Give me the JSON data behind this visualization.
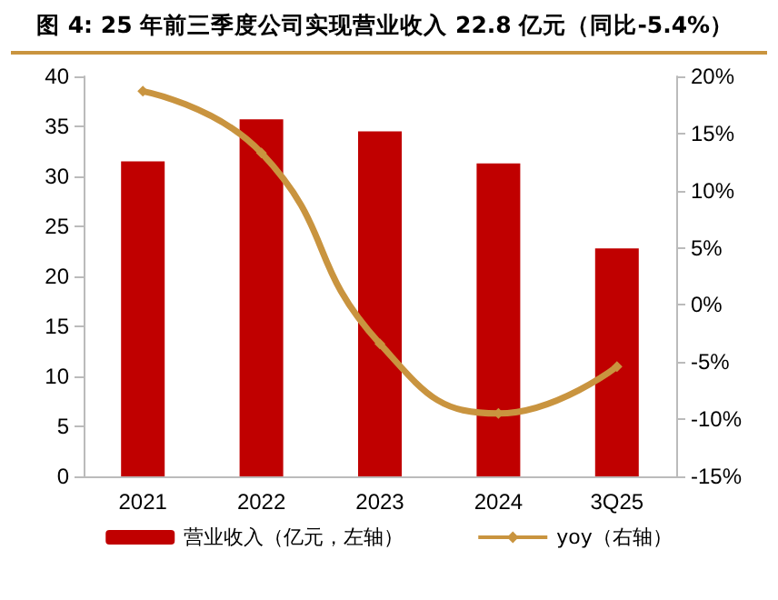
{
  "chart_data": {
    "type": "bar",
    "title": "图 4: 25 年前三季度公司实现营业收入 22.8 亿元（同比-5.4%）",
    "categories": [
      "2021",
      "2022",
      "2023",
      "2024",
      "3Q25"
    ],
    "series": [
      {
        "name": "营业收入（亿元，左轴）",
        "color": "#c00000",
        "values": [
          31.5,
          35.7,
          34.5,
          31.3,
          22.8
        ]
      },
      {
        "name": "yoy（右轴）",
        "type": "line",
        "axis": "y2",
        "color": "#c9943f",
        "marker": "diamond",
        "values": [
          18.7,
          13.3,
          -3.4,
          -9.5,
          -5.4
        ]
      }
    ],
    "ylim": [
      0,
      40
    ],
    "yticks": [
      0,
      5,
      10,
      15,
      20,
      25,
      30,
      35,
      40
    ],
    "y2lim": [
      -15,
      20
    ],
    "y2ticks": [
      {
        "value": -15,
        "label": "-15%"
      },
      {
        "value": -10,
        "label": "-10%"
      },
      {
        "value": -5,
        "label": "-5%"
      },
      {
        "value": 0,
        "label": "0%"
      },
      {
        "value": 5,
        "label": "5%"
      },
      {
        "value": 10,
        "label": "10%"
      },
      {
        "value": 15,
        "label": "15%"
      },
      {
        "value": 20,
        "label": "20%"
      }
    ],
    "grid": false,
    "legend": "bottom"
  }
}
